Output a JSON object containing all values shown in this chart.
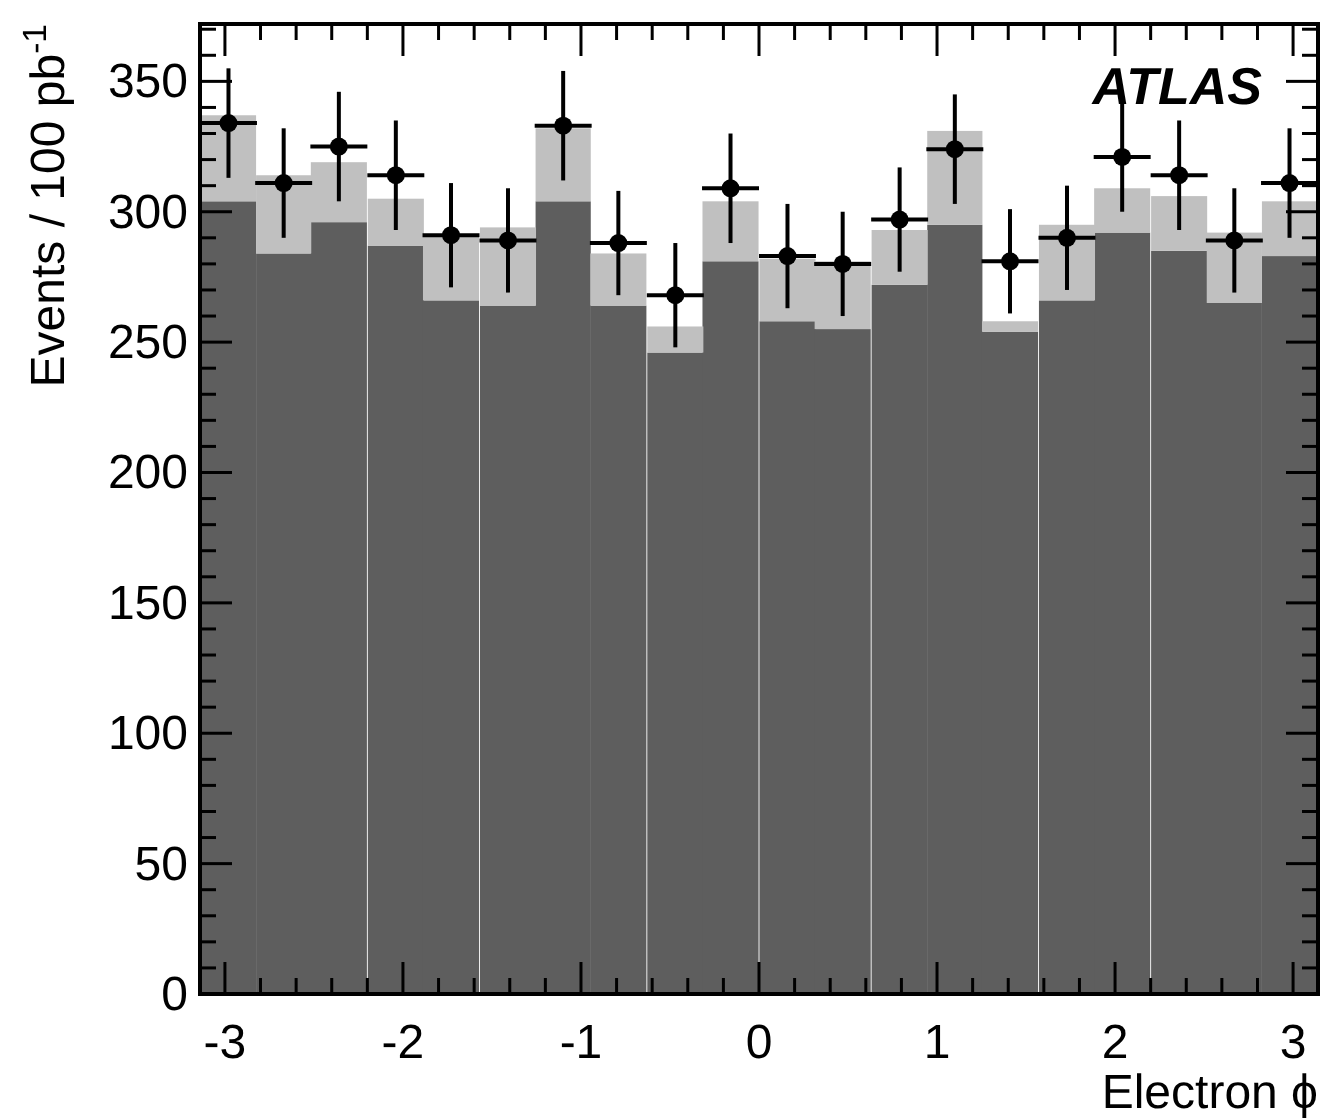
{
  "chart_data": {
    "type": "bar",
    "x": [
      -2.98,
      -2.67,
      -2.36,
      -2.04,
      -1.73,
      -1.41,
      -1.1,
      -0.79,
      -0.47,
      -0.16,
      0.16,
      0.47,
      0.79,
      1.1,
      1.41,
      1.73,
      2.04,
      2.36,
      2.67,
      2.98
    ],
    "xlabel": "Electron ϕ",
    "ylabel": "Events / 100 pb$^{-1}$",
    "annotations": [
      "ATLAS"
    ],
    "stacked": true,
    "marker": "circle",
    "series": [
      {
        "color": "#5e5e5e",
        "values": [
          304,
          284,
          296,
          287,
          266,
          264,
          304,
          264,
          246,
          281,
          258,
          255,
          272,
          295,
          254,
          266,
          292,
          285,
          265,
          283
        ]
      },
      {
        "color": "#c0c0c0",
        "values": [
          33,
          30,
          23,
          18,
          25,
          30,
          28,
          20,
          10,
          23,
          24,
          26,
          21,
          36,
          4,
          29,
          17,
          21,
          27,
          21
        ]
      },
      {
        "type": "scatter",
        "color": "#000000",
        "x": [
          -2.98,
          -2.67,
          -2.36,
          -2.04,
          -1.73,
          -1.41,
          -1.1,
          -0.79,
          -0.47,
          -0.16,
          0.16,
          0.47,
          0.79,
          1.1,
          1.41,
          1.73,
          2.04,
          2.36,
          2.67,
          2.98
        ],
        "values": [
          334,
          311,
          325,
          314,
          291,
          289,
          333,
          288,
          268,
          309,
          283,
          280,
          297,
          324,
          281,
          290,
          321,
          314,
          289,
          311
        ],
        "errors": [
          21,
          21,
          21,
          21,
          20,
          20,
          21,
          20,
          20,
          21,
          20,
          20,
          20,
          21,
          20,
          20,
          21,
          21,
          20,
          21
        ],
        "xerrors": [
          0.16,
          0.16,
          0.16,
          0.16,
          0.16,
          0.16,
          0.16,
          0.16,
          0.16,
          0.16,
          0.16,
          0.16,
          0.16,
          0.16,
          0.16,
          0.16,
          0.16,
          0.16,
          0.16,
          0.16
        ]
      }
    ],
    "xlim": [
      -3.14,
      3.14
    ],
    "ylim": [
      0,
      372
    ],
    "xticks": [
      -3,
      {
        "value": -2.8,
        "label": null
      },
      {
        "value": -2.6,
        "label": null
      },
      {
        "value": -2.4,
        "label": null
      },
      {
        "value": -2.2,
        "label": null
      },
      -2,
      {
        "value": -1.8,
        "label": null
      },
      {
        "value": -1.6,
        "label": null
      },
      {
        "value": -1.4,
        "label": null
      },
      {
        "value": -1.2,
        "label": null
      },
      -1,
      {
        "value": -0.8,
        "label": null
      },
      {
        "value": -0.6,
        "label": null
      },
      {
        "value": -0.4,
        "label": null
      },
      {
        "value": -0.2,
        "label": null
      },
      0,
      {
        "value": 0.2,
        "label": null
      },
      {
        "value": 0.4,
        "label": null
      },
      {
        "value": 0.6,
        "label": null
      },
      {
        "value": 0.8,
        "label": null
      },
      1,
      {
        "value": 1.2,
        "label": null
      },
      {
        "value": 1.4,
        "label": null
      },
      {
        "value": 1.6,
        "label": null
      },
      {
        "value": 1.8,
        "label": null
      },
      2,
      {
        "value": 2.2,
        "label": null
      },
      {
        "value": 2.4,
        "label": null
      },
      {
        "value": 2.6,
        "label": null
      },
      {
        "value": 2.8,
        "label": null
      },
      3
    ],
    "yticks": [
      0,
      {
        "value": 10,
        "label": null
      },
      {
        "value": 20,
        "label": null
      },
      {
        "value": 30,
        "label": null
      },
      {
        "value": 40,
        "label": null
      },
      50,
      {
        "value": 60,
        "label": null
      },
      {
        "value": 70,
        "label": null
      },
      {
        "value": 80,
        "label": null
      },
      {
        "value": 90,
        "label": null
      },
      100,
      {
        "value": 110,
        "label": null
      },
      {
        "value": 120,
        "label": null
      },
      {
        "value": 130,
        "label": null
      },
      {
        "value": 140,
        "label": null
      },
      150,
      {
        "value": 160,
        "label": null
      },
      {
        "value": 170,
        "label": null
      },
      {
        "value": 180,
        "label": null
      },
      {
        "value": 190,
        "label": null
      },
      200,
      {
        "value": 210,
        "label": null
      },
      {
        "value": 220,
        "label": null
      },
      {
        "value": 230,
        "label": null
      },
      {
        "value": 240,
        "label": null
      },
      250,
      {
        "value": 260,
        "label": null
      },
      {
        "value": 270,
        "label": null
      },
      {
        "value": 280,
        "label": null
      },
      {
        "value": 290,
        "label": null
      },
      300,
      {
        "value": 310,
        "label": null
      },
      {
        "value": 320,
        "label": null
      },
      {
        "value": 330,
        "label": null
      },
      {
        "value": 340,
        "label": null
      },
      350,
      {
        "value": 360,
        "label": null
      },
      {
        "value": 370,
        "label": null
      }
    ]
  }
}
